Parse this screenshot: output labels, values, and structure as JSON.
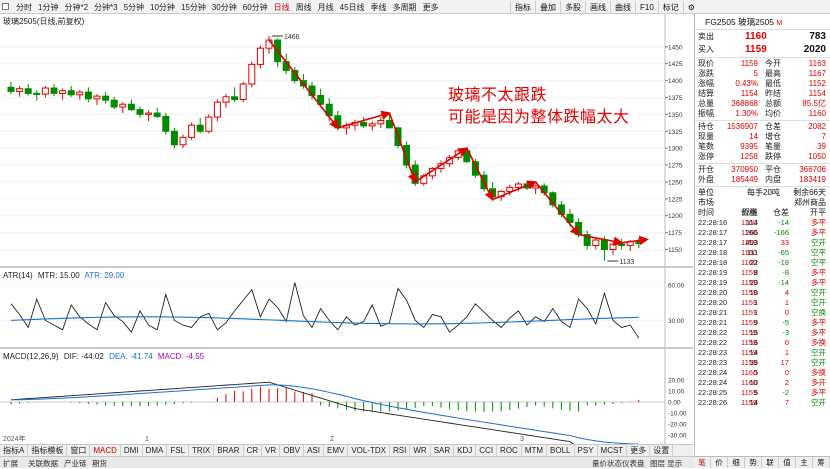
{
  "toolbar": {
    "periods": [
      "分时",
      "1分钟",
      "分钟*2",
      "分钟*3",
      "5分钟",
      "10分钟",
      "15分钟",
      "30分钟",
      "60分钟",
      "日线",
      "周线",
      "月线",
      "45日线",
      "季线",
      "多周期",
      "更多"
    ],
    "active_period": "日线",
    "buttons": [
      "指标",
      "叠加",
      "多股",
      "画线",
      "曲线",
      "F10",
      "标记"
    ],
    "gear_icon": "gear-icon"
  },
  "chart": {
    "title": "玻璃2505(日线,前复权)",
    "annotation_line1": "玻璃不太跟跌",
    "annotation_line2": "可能是因为整体跌幅太大",
    "high_label": "1466",
    "low_label": "1133",
    "colors": {
      "up": "#e00000",
      "down": "#008a00",
      "arrow": "#e00000",
      "annotation": "#e60000"
    }
  },
  "atr": {
    "name": "ATR(14)",
    "mtr": "MTR: 15.00",
    "atr_val": "ATR: 29.00"
  },
  "macd": {
    "name": "MACD(12,26,9)",
    "dif": "DIF: -44.02",
    "dea": "DEA: -41.74",
    "macd_val": "MACD: -4.55"
  },
  "axes": {
    "price_ticks": [
      "1450",
      "1425",
      "1400",
      "1375",
      "1350",
      "1325",
      "1300",
      "1275",
      "1250",
      "1225",
      "1200",
      "1175",
      "1150"
    ],
    "atr_ticks": [
      "60.00",
      "30.00"
    ],
    "macd_ticks": [
      "20.00",
      "10.00",
      "0.00",
      "-10.00",
      "-20.00",
      "-30.00",
      "-40.00"
    ],
    "time_labels": [
      "2024年",
      "1",
      "2",
      "3"
    ]
  },
  "bottom_tabs": [
    "指标A",
    "指标模板",
    "窗口",
    "MACD",
    "DMI",
    "DMA",
    "FSL",
    "TRIX",
    "BRAR",
    "CR",
    "VR",
    "OBV",
    "ASI",
    "EMV",
    "VOL-TDX",
    "RSI",
    "WR",
    "SAR",
    "KDJ",
    "CCI",
    "ROC",
    "MTM",
    "BOLL",
    "PSY",
    "MCST",
    "更多",
    "设置"
  ],
  "bottom_active": "MACD",
  "statusbar": {
    "left": "扩展",
    "items": [
      "关联数据",
      "产业链",
      "期货"
    ],
    "right_items": [
      "量价状态仪表盘",
      "图层 显示"
    ]
  },
  "quote": {
    "code": "FG2505",
    "name": "玻璃2505",
    "sub": "M",
    "sell_label": "卖出",
    "sell_price": "1160",
    "sell_vol": "783",
    "buy_label": "买入",
    "buy_price": "1159",
    "buy_vol": "2020",
    "rows": [
      [
        "现价",
        "1159",
        "今开",
        "1163"
      ],
      [
        "涨跌",
        "5",
        "最高",
        "1167"
      ],
      [
        "涨幅",
        "0.43%",
        "最低",
        "1152"
      ],
      [
        "结算",
        "1154",
        "昨结",
        "1154"
      ],
      [
        "总量",
        "368868",
        "总额",
        "85.5亿"
      ],
      [
        "振幅",
        "1.30%",
        "均价",
        "1160"
      ]
    ],
    "rows2": [
      [
        "持仓",
        "1536907",
        "仓差",
        "2082"
      ],
      [
        "现量",
        "14",
        "增仓",
        "7"
      ],
      [
        "笔数",
        "9395",
        "笔量",
        "39"
      ],
      [
        "涨停",
        "1258",
        "跌停",
        "1050"
      ]
    ],
    "rows3": [
      [
        "开仓",
        "370950",
        "平仓",
        "366706"
      ],
      [
        "外盘",
        "185449",
        "内盘",
        "183419"
      ]
    ],
    "unit_label": "单位",
    "unit_value": "每手20吨",
    "remain": "剩余66天",
    "market_label": "市场",
    "market_value": "郑州商品",
    "tape_header": [
      "时间",
      "价格",
      "现量",
      "仓差",
      "开平"
    ],
    "tape": [
      [
        "22:28:16",
        "1160",
        "114",
        "-14",
        "多平"
      ],
      [
        "22:28:17",
        "1160",
        "266",
        "-166",
        "多平"
      ],
      [
        "22:28:17",
        "1159",
        "403",
        "33",
        "空开"
      ],
      [
        "22:28:18",
        "1160",
        "111",
        "-65",
        "空平"
      ],
      [
        "22:28:18",
        "1160",
        "22",
        "-18",
        "空平"
      ],
      [
        "22:28:19",
        "1159",
        "8",
        "-8",
        "多平"
      ],
      [
        "22:28:19",
        "1159",
        "20",
        "-14",
        "多平"
      ],
      [
        "22:28:20",
        "1159",
        "10",
        "4",
        "空开"
      ],
      [
        "22:28:20",
        "1159",
        "1",
        "1",
        "空开"
      ],
      [
        "22:28:21",
        "1159",
        "1",
        "0",
        "空换"
      ],
      [
        "22:28:21",
        "1159",
        "9",
        "-5",
        "多平"
      ],
      [
        "22:28:22",
        "1159",
        "15",
        "-3",
        "多平"
      ],
      [
        "22:28:22",
        "1159",
        "16",
        "0",
        "多换"
      ],
      [
        "22:28:23",
        "1159",
        "14",
        "1",
        "空开"
      ],
      [
        "22:28:23",
        "1159",
        "35",
        "17",
        "空开"
      ],
      [
        "22:28:24",
        "1160",
        "5",
        "0",
        "多换"
      ],
      [
        "22:28:24",
        "1160",
        "10",
        "2",
        "多开"
      ],
      [
        "22:28:25",
        "1159",
        "5",
        "-2",
        "多平"
      ],
      [
        "22:28:26",
        "1159",
        "14",
        "7",
        "空开"
      ]
    ]
  },
  "right_tabs": [
    "笔",
    "价",
    "细",
    "势",
    "联",
    "值",
    "主",
    "筹"
  ],
  "right_active": "笔"
}
